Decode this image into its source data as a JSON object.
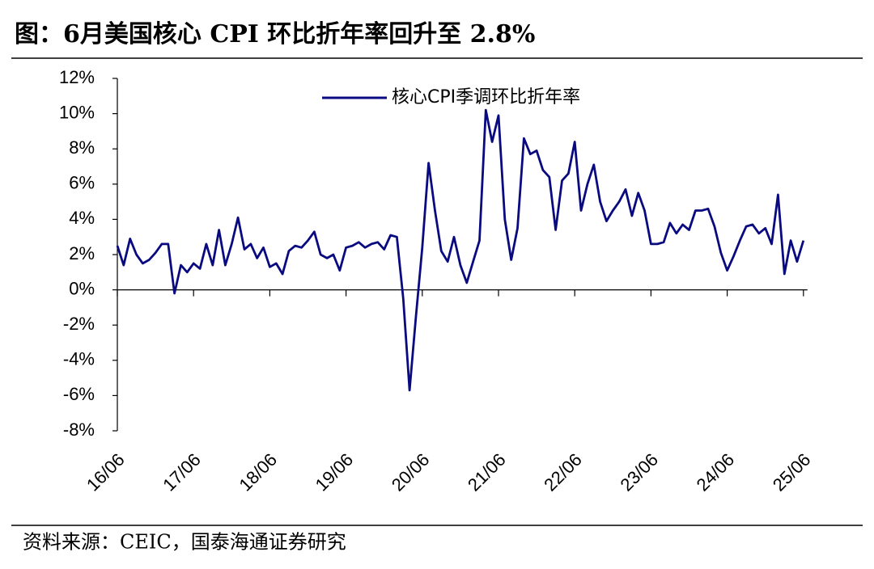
{
  "chart_data": {
    "type": "line",
    "title": "图：6月美国核心 CPI 环比折年率回升至 2.8%",
    "source": "资料来源：CEIC，国泰海通证券研究",
    "categories": [
      "16/06",
      null,
      null,
      null,
      null,
      null,
      null,
      null,
      null,
      null,
      null,
      null,
      "17/06",
      null,
      null,
      null,
      null,
      null,
      null,
      null,
      null,
      null,
      null,
      null,
      "18/06",
      null,
      null,
      null,
      null,
      null,
      null,
      null,
      null,
      null,
      null,
      null,
      "19/06",
      null,
      null,
      null,
      null,
      null,
      null,
      null,
      null,
      null,
      null,
      null,
      "20/06",
      null,
      null,
      null,
      null,
      null,
      null,
      null,
      null,
      null,
      null,
      null,
      "21/06",
      null,
      null,
      null,
      null,
      null,
      null,
      null,
      null,
      null,
      null,
      null,
      "22/06",
      null,
      null,
      null,
      null,
      null,
      null,
      null,
      null,
      null,
      null,
      null,
      "23/06",
      null,
      null,
      null,
      null,
      null,
      null,
      null,
      null,
      null,
      null,
      null,
      "24/06",
      null,
      null,
      null,
      null,
      null,
      null,
      null,
      null,
      null,
      null,
      null,
      "25/06"
    ],
    "series": [
      {
        "name": "核心CPI季调环比折年率",
        "color": "#0a0a80",
        "values": [
          2.5,
          1.4,
          2.9,
          2.0,
          1.5,
          1.7,
          2.1,
          2.6,
          2.6,
          -0.2,
          1.4,
          1.0,
          1.5,
          1.2,
          2.6,
          1.4,
          3.4,
          1.4,
          2.6,
          4.1,
          2.3,
          2.6,
          1.8,
          2.4,
          1.3,
          1.5,
          0.9,
          2.2,
          2.5,
          2.4,
          2.8,
          3.3,
          2.0,
          1.8,
          2.0,
          1.1,
          2.4,
          2.5,
          2.7,
          2.4,
          2.6,
          2.7,
          2.3,
          3.1,
          3.0,
          -0.5,
          -5.7,
          -1.5,
          2.4,
          7.2,
          4.5,
          2.2,
          1.6,
          3.0,
          1.4,
          0.4,
          1.6,
          2.8,
          10.2,
          8.4,
          9.9,
          4.0,
          1.7,
          3.5,
          8.6,
          7.7,
          7.9,
          6.8,
          6.4,
          3.4,
          6.2,
          6.6,
          8.4,
          4.5,
          6.0,
          7.1,
          5.0,
          3.9,
          4.5,
          5.0,
          5.7,
          4.2,
          5.5,
          4.5,
          2.6,
          2.6,
          2.7,
          3.8,
          3.2,
          3.7,
          3.4,
          4.5,
          4.5,
          4.6,
          3.6,
          2.1,
          1.1,
          1.9,
          2.8,
          3.6,
          3.7,
          3.2,
          3.5,
          2.6,
          5.4,
          0.9,
          2.8,
          1.6,
          2.8
        ]
      }
    ],
    "ylim": [
      -8,
      12
    ],
    "yticks": [
      {
        "value": -8,
        "label": "-8%"
      },
      {
        "value": -6,
        "label": "-6%"
      },
      {
        "value": -4,
        "label": "-4%"
      },
      {
        "value": -2,
        "label": "-2%"
      },
      {
        "value": 0,
        "label": "0%"
      },
      {
        "value": 2,
        "label": "2%"
      },
      {
        "value": 4,
        "label": "4%"
      },
      {
        "value": 6,
        "label": "6%"
      },
      {
        "value": 8,
        "label": "8%"
      },
      {
        "value": 10,
        "label": "10%"
      },
      {
        "value": 12,
        "label": "12%"
      }
    ],
    "legend": "top-center"
  }
}
